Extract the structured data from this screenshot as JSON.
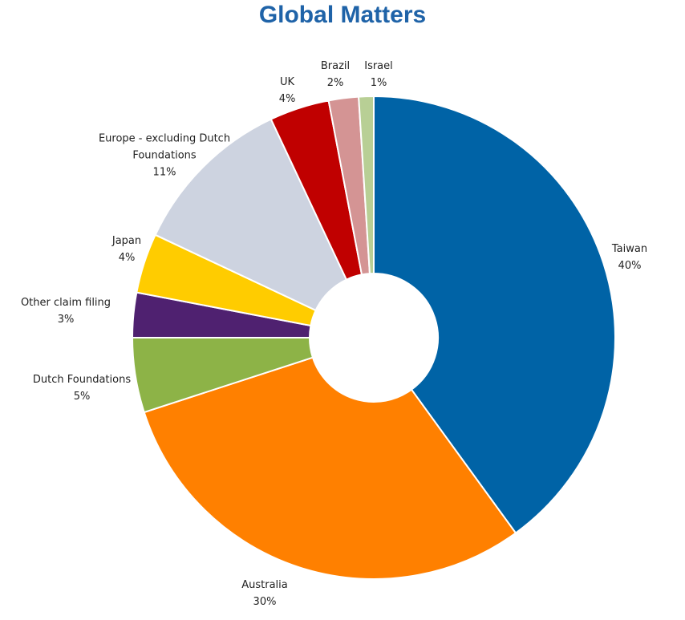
{
  "chart_data": {
    "type": "pie",
    "title": "Global Matters",
    "categories": [
      "Taiwan",
      "Australia",
      "Dutch Foundations",
      "Other claim filing",
      "Japan",
      "Europe - excluding Dutch Foundations",
      "UK",
      "Brazil",
      "Israel"
    ],
    "values": [
      40,
      30,
      5,
      3,
      4,
      11,
      4,
      2,
      1
    ],
    "value_labels": [
      "40%",
      "30%",
      "5%",
      "3%",
      "4%",
      "11%",
      "4%",
      "2%",
      "1%"
    ],
    "colors": [
      "#0063a6",
      "#ff8000",
      "#8db347",
      "#4f2170",
      "#ffcc00",
      "#cdd3e0",
      "#c00000",
      "#d49494",
      "#b8cf95"
    ]
  }
}
